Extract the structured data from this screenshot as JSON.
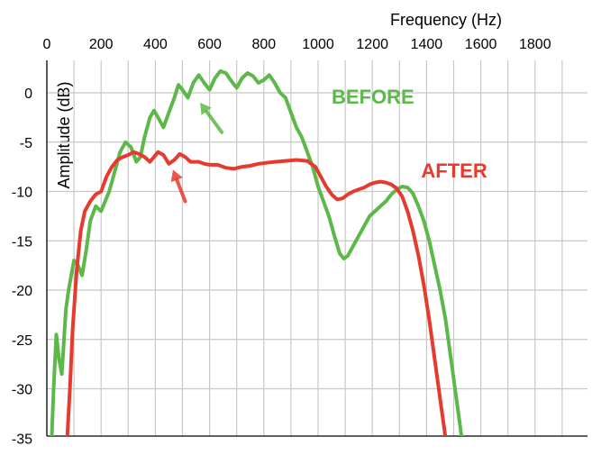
{
  "chart_data": {
    "type": "line",
    "xlabel": "Frequency (Hz)",
    "ylabel": "Amplitude (dB)",
    "x_axis_position": "top",
    "grid": true,
    "xlim": [
      0,
      2000
    ],
    "ylim": [
      -35,
      3
    ],
    "x_ticks": [
      0,
      200,
      400,
      600,
      800,
      1000,
      1200,
      1400,
      1600,
      1800
    ],
    "y_ticks": [
      0,
      -5,
      -10,
      -15,
      -20,
      -25,
      -30,
      -35
    ],
    "series": [
      {
        "name": "BEFORE",
        "color": "#5db84a",
        "points": [
          [
            18,
            -35
          ],
          [
            25,
            -30
          ],
          [
            35,
            -24.5
          ],
          [
            45,
            -27
          ],
          [
            55,
            -28.5
          ],
          [
            70,
            -22
          ],
          [
            80,
            -20
          ],
          [
            100,
            -17
          ],
          [
            115,
            -17.5
          ],
          [
            130,
            -18.5
          ],
          [
            145,
            -16
          ],
          [
            160,
            -13
          ],
          [
            180,
            -11.5
          ],
          [
            200,
            -12
          ],
          [
            215,
            -11
          ],
          [
            230,
            -10
          ],
          [
            250,
            -8
          ],
          [
            270,
            -6
          ],
          [
            290,
            -5
          ],
          [
            310,
            -5.5
          ],
          [
            330,
            -7
          ],
          [
            345,
            -6.5
          ],
          [
            360,
            -4.5
          ],
          [
            380,
            -2.5
          ],
          [
            395,
            -1.8
          ],
          [
            410,
            -2.5
          ],
          [
            430,
            -3.5
          ],
          [
            450,
            -2
          ],
          [
            470,
            -0.5
          ],
          [
            485,
            0.8
          ],
          [
            500,
            0.3
          ],
          [
            520,
            -0.5
          ],
          [
            540,
            1
          ],
          [
            560,
            1.8
          ],
          [
            580,
            1
          ],
          [
            600,
            0.3
          ],
          [
            620,
            1.5
          ],
          [
            640,
            2.2
          ],
          [
            660,
            2
          ],
          [
            680,
            1.2
          ],
          [
            700,
            0.5
          ],
          [
            720,
            1.5
          ],
          [
            740,
            2
          ],
          [
            760,
            1.7
          ],
          [
            780,
            1
          ],
          [
            800,
            1.3
          ],
          [
            820,
            1.8
          ],
          [
            840,
            1
          ],
          [
            860,
            0
          ],
          [
            880,
            -0.5
          ],
          [
            900,
            -2
          ],
          [
            920,
            -3.5
          ],
          [
            940,
            -4.5
          ],
          [
            960,
            -6
          ],
          [
            980,
            -7.5
          ],
          [
            1000,
            -9.5
          ],
          [
            1020,
            -11
          ],
          [
            1040,
            -12.5
          ],
          [
            1060,
            -14.5
          ],
          [
            1080,
            -16.3
          ],
          [
            1095,
            -16.8
          ],
          [
            1110,
            -16.5
          ],
          [
            1130,
            -15.5
          ],
          [
            1150,
            -14.5
          ],
          [
            1170,
            -13.5
          ],
          [
            1190,
            -12.5
          ],
          [
            1210,
            -12
          ],
          [
            1230,
            -11.5
          ],
          [
            1250,
            -11
          ],
          [
            1270,
            -10.3
          ],
          [
            1290,
            -9.8
          ],
          [
            1310,
            -9.5
          ],
          [
            1330,
            -9.6
          ],
          [
            1350,
            -10.2
          ],
          [
            1370,
            -11.5
          ],
          [
            1390,
            -13
          ],
          [
            1410,
            -15
          ],
          [
            1430,
            -17.5
          ],
          [
            1450,
            -20
          ],
          [
            1470,
            -23
          ],
          [
            1490,
            -27
          ],
          [
            1510,
            -31
          ],
          [
            1530,
            -35
          ]
        ]
      },
      {
        "name": "AFTER",
        "color": "#e63a2e",
        "points": [
          [
            75,
            -35
          ],
          [
            85,
            -30
          ],
          [
            95,
            -24
          ],
          [
            110,
            -18
          ],
          [
            125,
            -14
          ],
          [
            140,
            -12
          ],
          [
            160,
            -11
          ],
          [
            180,
            -10.3
          ],
          [
            200,
            -10
          ],
          [
            220,
            -8.5
          ],
          [
            240,
            -7.5
          ],
          [
            260,
            -6.8
          ],
          [
            280,
            -6.5
          ],
          [
            300,
            -6.3
          ],
          [
            320,
            -6
          ],
          [
            340,
            -6.2
          ],
          [
            360,
            -6.5
          ],
          [
            380,
            -7
          ],
          [
            395,
            -6.5
          ],
          [
            410,
            -6
          ],
          [
            430,
            -6.3
          ],
          [
            450,
            -7.2
          ],
          [
            470,
            -6.8
          ],
          [
            490,
            -6.2
          ],
          [
            510,
            -6.5
          ],
          [
            530,
            -7
          ],
          [
            560,
            -7
          ],
          [
            580,
            -7.2
          ],
          [
            600,
            -7.3
          ],
          [
            630,
            -7.3
          ],
          [
            660,
            -7.6
          ],
          [
            690,
            -7.7
          ],
          [
            720,
            -7.5
          ],
          [
            750,
            -7.4
          ],
          [
            780,
            -7.2
          ],
          [
            810,
            -7.1
          ],
          [
            840,
            -7
          ],
          [
            880,
            -6.9
          ],
          [
            920,
            -6.8
          ],
          [
            960,
            -6.9
          ],
          [
            990,
            -7.5
          ],
          [
            1010,
            -8.5
          ],
          [
            1030,
            -9.5
          ],
          [
            1050,
            -10.3
          ],
          [
            1070,
            -10.8
          ],
          [
            1090,
            -10.7
          ],
          [
            1110,
            -10.3
          ],
          [
            1130,
            -10
          ],
          [
            1150,
            -9.8
          ],
          [
            1170,
            -9.6
          ],
          [
            1190,
            -9.3
          ],
          [
            1210,
            -9.1
          ],
          [
            1230,
            -9
          ],
          [
            1250,
            -9.1
          ],
          [
            1270,
            -9.3
          ],
          [
            1290,
            -9.7
          ],
          [
            1310,
            -10.5
          ],
          [
            1330,
            -12
          ],
          [
            1350,
            -14
          ],
          [
            1370,
            -16.5
          ],
          [
            1390,
            -19.5
          ],
          [
            1410,
            -23
          ],
          [
            1430,
            -27
          ],
          [
            1450,
            -31
          ],
          [
            1470,
            -35
          ]
        ]
      }
    ],
    "annotations": [
      {
        "text": "BEFORE",
        "color": "#5db84a",
        "x": 1050,
        "y": 0,
        "arrow_from": [
          645,
          -4
        ],
        "arrow_to": [
          565,
          -1
        ]
      },
      {
        "text": "AFTER",
        "color": "#e63a2e",
        "x": 1380,
        "y": -7.5,
        "arrow_from": [
          510,
          -11
        ],
        "arrow_to": [
          465,
          -7.8
        ]
      }
    ]
  }
}
